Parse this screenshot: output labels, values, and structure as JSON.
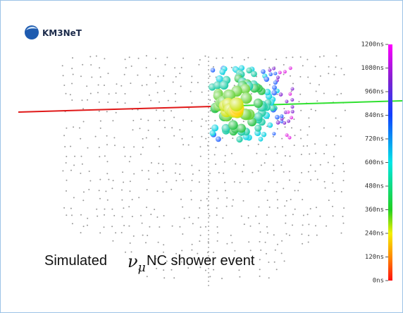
{
  "logo": "KM3NeT",
  "caption": {
    "prefix": "Simulated",
    "symbol": "ν",
    "subscript": "μ",
    "suffix": "NC shower event"
  },
  "colorbar": {
    "range": [
      0,
      1200
    ],
    "ticks": [
      {
        "value": 1200,
        "label": "1200ns"
      },
      {
        "value": 1080,
        "label": "1080ns"
      },
      {
        "value": 960,
        "label": "960ns"
      },
      {
        "value": 840,
        "label": "840ns"
      },
      {
        "value": 720,
        "label": "720ns"
      },
      {
        "value": 600,
        "label": "600ns"
      },
      {
        "value": 480,
        "label": "480ns"
      },
      {
        "value": 360,
        "label": "360ns"
      },
      {
        "value": 240,
        "label": "240ns"
      },
      {
        "value": 120,
        "label": "120ns"
      },
      {
        "value": 0,
        "label": "0ns"
      }
    ]
  }
}
